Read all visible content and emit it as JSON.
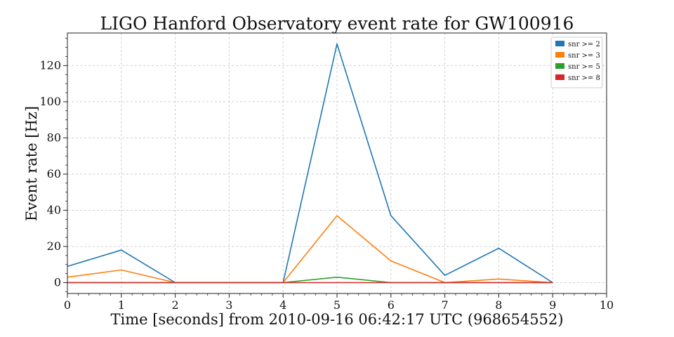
{
  "chart_data": {
    "type": "line",
    "title": "LIGO Hanford Observatory event rate for GW100916",
    "xlabel": "Time [seconds] from 2010-09-16 06:42:17 UTC (968654552)",
    "ylabel": "Event rate [Hz]",
    "xlim": [
      0,
      10
    ],
    "ylim": [
      -6,
      138
    ],
    "xticks": [
      "0",
      "1",
      "2",
      "3",
      "4",
      "5",
      "6",
      "7",
      "8",
      "9",
      "10"
    ],
    "yticks": [
      "0",
      "20",
      "40",
      "60",
      "80",
      "100",
      "120"
    ],
    "x": [
      0,
      1,
      2,
      3,
      4,
      5,
      6,
      7,
      8,
      9
    ],
    "grid": true,
    "legend_position": "top-right",
    "series": [
      {
        "name": "snr >= 2",
        "color": "#1f77b4",
        "values": [
          9,
          18,
          0,
          0,
          0,
          132,
          37,
          4,
          19,
          0
        ]
      },
      {
        "name": "snr >= 3",
        "color": "#ff7f0e",
        "values": [
          3,
          7,
          0,
          0,
          0,
          37,
          12,
          0,
          2,
          0
        ]
      },
      {
        "name": "snr >= 5",
        "color": "#2ca02c",
        "values": [
          0,
          0,
          0,
          0,
          0,
          3,
          0,
          0,
          0,
          0
        ]
      },
      {
        "name": "snr >= 8",
        "color": "#d62728",
        "values": [
          0,
          0,
          0,
          0,
          0,
          0,
          0,
          0,
          0,
          0
        ]
      }
    ]
  }
}
